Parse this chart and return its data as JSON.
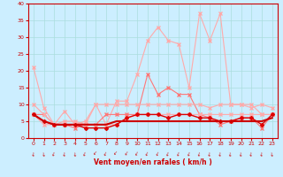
{
  "xlabel": "Vent moyen/en rafales ( km/h )",
  "background_color": "#cceeff",
  "grid_color": "#aadddd",
  "xlim": [
    -0.5,
    23.5
  ],
  "ylim": [
    0,
    40
  ],
  "yticks": [
    0,
    5,
    10,
    15,
    20,
    25,
    30,
    35,
    40
  ],
  "xticks": [
    0,
    1,
    2,
    3,
    4,
    5,
    6,
    7,
    8,
    9,
    10,
    11,
    12,
    13,
    14,
    15,
    16,
    17,
    18,
    19,
    20,
    21,
    22,
    23
  ],
  "series": [
    {
      "color": "#ffaaaa",
      "linewidth": 0.8,
      "marker": "x",
      "markersize": 2.5,
      "values": [
        21,
        9,
        4,
        8,
        4,
        5,
        10,
        4,
        11,
        11,
        19,
        29,
        33,
        29,
        28,
        15,
        37,
        29,
        37,
        10,
        10,
        10,
        7,
        7
      ]
    },
    {
      "color": "#ff7777",
      "linewidth": 0.8,
      "marker": "x",
      "markersize": 2.5,
      "values": [
        7,
        7,
        4,
        4,
        3,
        4,
        4,
        7,
        7,
        7,
        7,
        19,
        13,
        15,
        13,
        13,
        7,
        6,
        4,
        5,
        6,
        6,
        3,
        7
      ]
    },
    {
      "color": "#ffaaaa",
      "linewidth": 0.8,
      "marker": "x",
      "markersize": 2.5,
      "values": [
        10,
        7,
        4,
        5,
        5,
        4,
        10,
        10,
        10,
        10,
        10,
        10,
        10,
        10,
        10,
        10,
        10,
        9,
        10,
        10,
        10,
        9,
        10,
        9
      ]
    },
    {
      "color": "#ffaaaa",
      "linewidth": 0.8,
      "marker": "x",
      "markersize": 2.5,
      "values": [
        7,
        4,
        4,
        4,
        4,
        4,
        4,
        4,
        4,
        6,
        7,
        7,
        7,
        7,
        7,
        7,
        7,
        7,
        7,
        7,
        7,
        7,
        7,
        7
      ]
    },
    {
      "color": "#dd0000",
      "linewidth": 1.0,
      "marker": "D",
      "markersize": 2.0,
      "values": [
        7,
        5,
        4,
        4,
        4,
        3,
        3,
        3,
        4,
        6,
        7,
        7,
        7,
        6,
        7,
        7,
        6,
        6,
        5,
        5,
        6,
        6,
        4,
        7
      ]
    },
    {
      "color": "#cc0000",
      "linewidth": 1.5,
      "marker": null,
      "markersize": 0,
      "values": [
        7,
        5,
        4,
        4,
        4,
        4,
        4,
        4,
        5,
        5,
        5,
        5,
        5,
        5,
        5,
        5,
        5,
        5,
        5,
        5,
        5,
        5,
        5,
        6
      ]
    }
  ],
  "arrow_color": "#cc0000",
  "arrow_angles": [
    210,
    225,
    200,
    210,
    220,
    200,
    180,
    195,
    180,
    185,
    190,
    195,
    195,
    200,
    200,
    200,
    205,
    210,
    210,
    215,
    215,
    210,
    210,
    225
  ]
}
